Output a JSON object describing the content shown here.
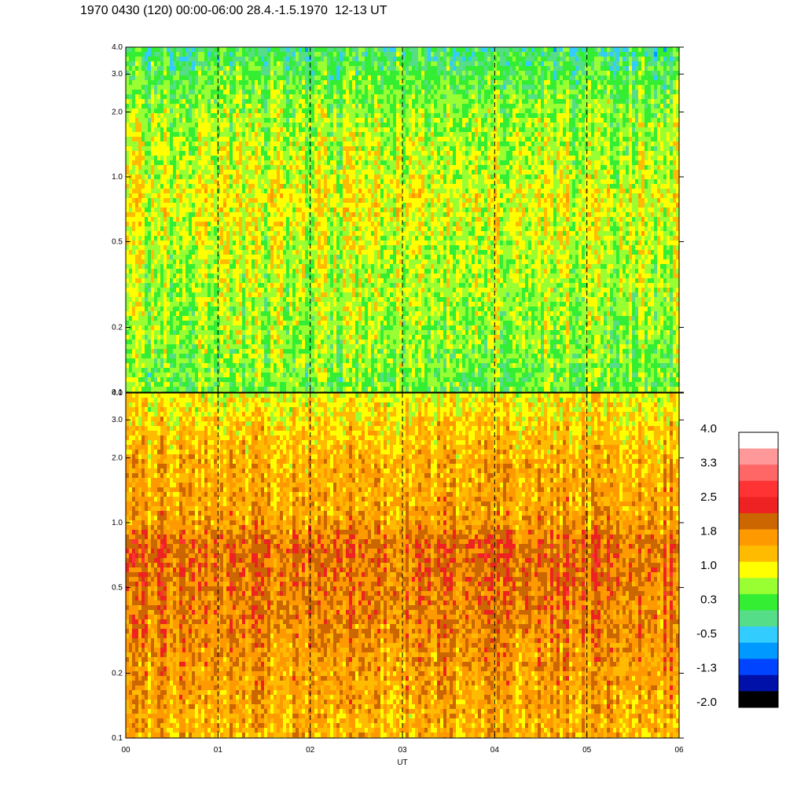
{
  "title": "1970 0430 (120) 00:00-06:00 28.4.-1.5.1970  12-13 UT",
  "chart_data": [
    {
      "type": "heatmap",
      "panel": "upper",
      "x": {
        "range": [
          0,
          6
        ],
        "tick_values": [
          0,
          1,
          2,
          3,
          4,
          5,
          6
        ],
        "tick_labels": [
          "00",
          "01",
          "02",
          "03",
          "04",
          "05",
          "06"
        ]
      },
      "y": {
        "scale": "log",
        "range": [
          0.1,
          4.0
        ],
        "tick_values": [
          0.1,
          0.2,
          0.5,
          1.0,
          2.0,
          3.0,
          4.0
        ],
        "tick_labels": [
          "0.1",
          "0.2",
          "0.5",
          "1.0",
          "2.0",
          "3.0",
          "4.0"
        ]
      },
      "grid_vertical_dashed_at": [
        1,
        2,
        3,
        4,
        5
      ],
      "dominant_values_by_frequency": [
        {
          "y": 0.1,
          "value": 0.4
        },
        {
          "y": 0.2,
          "value": 0.6
        },
        {
          "y": 0.5,
          "value": 0.8
        },
        {
          "y": 0.8,
          "value": 1.0
        },
        {
          "y": 1.0,
          "value": 0.8
        },
        {
          "y": 2.0,
          "value": 0.6
        },
        {
          "y": 4.0,
          "value": 0.0
        }
      ]
    },
    {
      "type": "heatmap",
      "panel": "lower",
      "x": {
        "label": "UT",
        "range": [
          0,
          6
        ],
        "tick_values": [
          0,
          1,
          2,
          3,
          4,
          5,
          6
        ],
        "tick_labels": [
          "00",
          "01",
          "02",
          "03",
          "04",
          "05",
          "06"
        ]
      },
      "y": {
        "scale": "log",
        "range": [
          0.1,
          4.0
        ],
        "tick_values": [
          0.1,
          0.2,
          0.5,
          1.0,
          2.0,
          3.0,
          4.0
        ],
        "tick_labels": [
          "0.1",
          "0.2",
          "0.5",
          "1.0",
          "2.0",
          "3.0",
          "4.0"
        ]
      },
      "grid_vertical_dashed_at": [
        1,
        2,
        3,
        4,
        5
      ],
      "dominant_values_by_frequency": [
        {
          "y": 0.1,
          "value": 1.5
        },
        {
          "y": 0.2,
          "value": 1.7
        },
        {
          "y": 0.5,
          "value": 2.0
        },
        {
          "y": 0.8,
          "value": 2.1
        },
        {
          "y": 1.0,
          "value": 1.7
        },
        {
          "y": 2.0,
          "value": 1.5
        },
        {
          "y": 4.0,
          "value": 1.0
        }
      ]
    }
  ],
  "colorbar": {
    "labels": [
      "4.0",
      "3.3",
      "2.5",
      "1.8",
      "1.0",
      "0.3",
      "-0.5",
      "-1.3",
      "-2.0"
    ],
    "colors": [
      "#ffffff",
      "#ff9999",
      "#ff6666",
      "#ff3333",
      "#ee2222",
      "#cc6600",
      "#ff9900",
      "#ffbb00",
      "#ffff00",
      "#99ff33",
      "#33ee33",
      "#55dd88",
      "#33ccff",
      "#0099ff",
      "#0044ff",
      "#0011aa",
      "#000000"
    ]
  }
}
